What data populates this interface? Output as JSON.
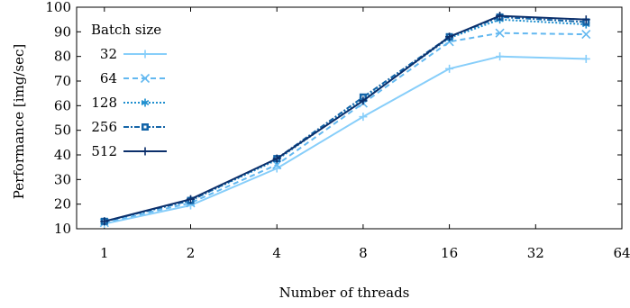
{
  "chart_data": {
    "type": "line",
    "xlabel": "Number of threads",
    "ylabel": "Performance [img/sec]",
    "x_scale": "log2",
    "xlim": [
      0.8,
      64
    ],
    "ylim": [
      10,
      100
    ],
    "x_ticks": [
      1,
      2,
      4,
      8,
      16,
      32,
      64
    ],
    "x_tick_labels": [
      "1",
      "2",
      "4",
      "8",
      "16",
      "32",
      "64"
    ],
    "y_ticks": [
      10,
      20,
      30,
      40,
      50,
      60,
      70,
      80,
      90,
      100
    ],
    "y_tick_labels": [
      "10",
      "20",
      "30",
      "40",
      "50",
      "60",
      "70",
      "80",
      "90",
      "100"
    ],
    "grid": false,
    "legend": {
      "title": "Batch size",
      "placement": "top-left"
    },
    "x": [
      1,
      2,
      4,
      8,
      16,
      24,
      48
    ],
    "series": [
      {
        "name": "32",
        "color": "#87cefa",
        "dash": "solid",
        "marker": "plus",
        "values": [
          12,
          19.5,
          34.5,
          55.5,
          75,
          80,
          79
        ]
      },
      {
        "name": "64",
        "color": "#63b8f0",
        "dash": "dashed",
        "marker": "x",
        "values": [
          12.5,
          20.5,
          36,
          61,
          86,
          89.5,
          89
        ]
      },
      {
        "name": "128",
        "color": "#1f8fcf",
        "dash": "dotted",
        "marker": "asterisk",
        "values": [
          13,
          21.5,
          38,
          62.5,
          87.5,
          95,
          93
        ]
      },
      {
        "name": "256",
        "color": "#1565a8",
        "dash": "dashdot",
        "marker": "square",
        "values": [
          13,
          21.5,
          38.5,
          63.5,
          88,
          96,
          94
        ]
      },
      {
        "name": "512",
        "color": "#0b2f6b",
        "dash": "solid",
        "marker": "plus",
        "values": [
          13,
          22,
          38.5,
          62,
          88,
          96.5,
          95
        ]
      }
    ]
  }
}
